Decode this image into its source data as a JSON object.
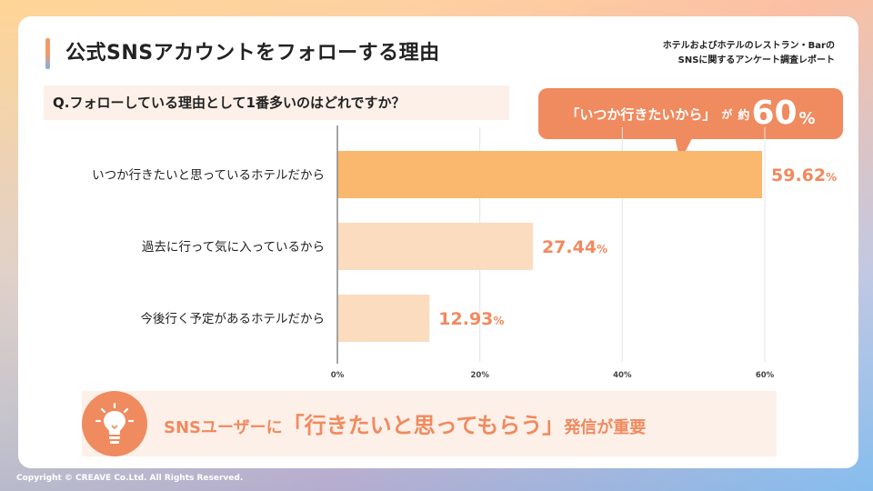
{
  "header": {
    "title": "公式SNSアカウントをフォローする理由",
    "report_line1": "ホテルおよびホテルのレストラン・Barの",
    "report_line2": "SNSに関するアンケート調査レポート"
  },
  "question": "Q.フォローしている理由として1番多いのはどれですか？",
  "callout": {
    "quote": "「いつか行きたいから」",
    "ga": "が",
    "approx": "約",
    "value": "60",
    "unit": "%"
  },
  "chart_data": {
    "type": "bar",
    "orientation": "horizontal",
    "categories": [
      "いつか行きたいと思っているホテルだから",
      "過去に行って気に入っているから",
      "今後行く予定があるホテルだから"
    ],
    "values": [
      59.62,
      27.44,
      12.93
    ],
    "value_labels": [
      "59.62",
      "27.44",
      "12.93"
    ],
    "value_unit": "%",
    "xlim": [
      0,
      60
    ],
    "xticks": [
      "0%",
      "20%",
      "40%",
      "60%"
    ],
    "grid": true,
    "colors": {
      "highlight_bar": "#f9b86e",
      "bar": "#fbdcbf",
      "value_label": "#f08a5f"
    }
  },
  "conclusion": {
    "part1": "SNSユーザーに",
    "part2": "「行きたいと思ってもらう」",
    "part3": "発信が重要",
    "icon": "lightbulb-icon"
  },
  "footer": {
    "copyright": "Copyright © CREAVE Co.Ltd. All Rights Reserved."
  },
  "theme": {
    "accent": "#f08a5f",
    "soft_bg": "#fdf0e8"
  }
}
